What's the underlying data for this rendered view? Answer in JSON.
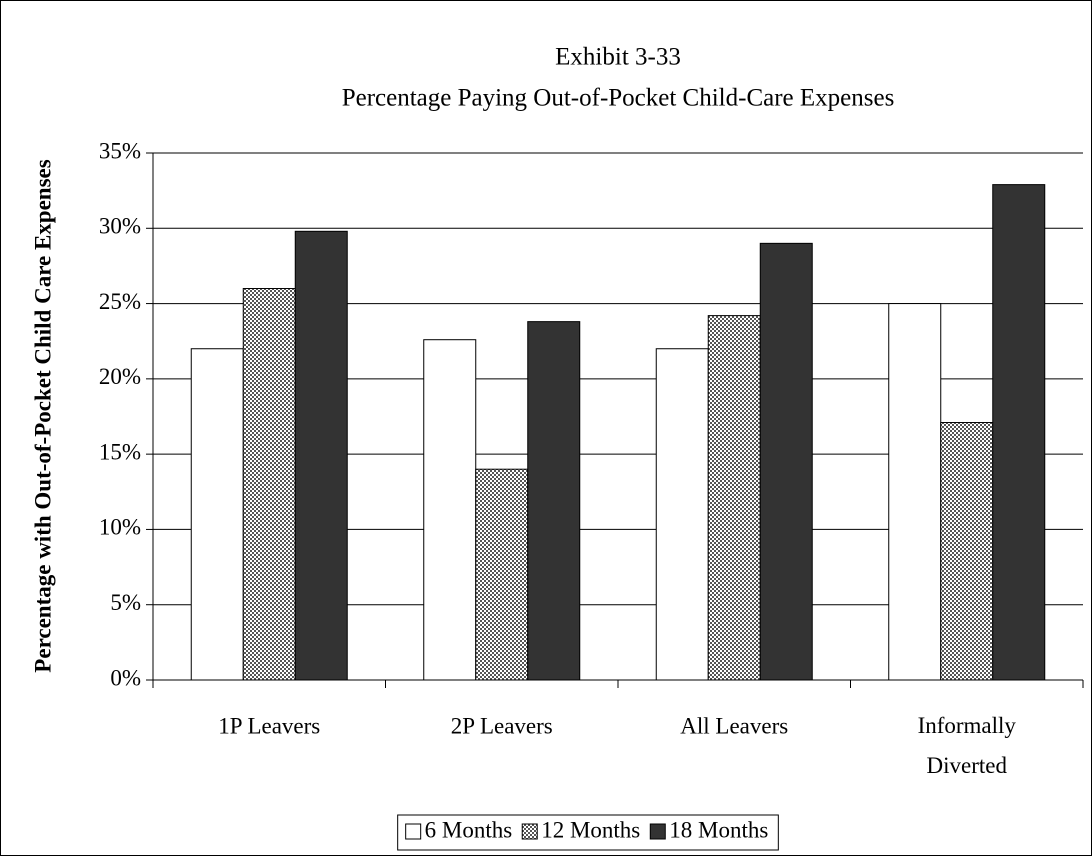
{
  "chart_data": {
    "type": "bar",
    "title": "Exhibit 3-33",
    "subtitle": "Percentage Paying Out-of-Pocket Child-Care Expenses",
    "y_label": "Percentage with Out-of-Pocket Child Care Expenses",
    "categories": [
      "1P Leavers",
      "2P Leavers",
      "All Leavers",
      "Informally Diverted"
    ],
    "series": [
      {
        "name": "6 Months",
        "color": "#ffffff",
        "values": [
          22.0,
          22.6,
          22.0,
          25.0
        ]
      },
      {
        "name": "12 Months",
        "color": "#8c8c8c",
        "pattern": "checker",
        "values": [
          26.0,
          14.0,
          24.2,
          17.1
        ]
      },
      {
        "name": "18 Months",
        "color": "#333333",
        "values": [
          29.8,
          23.8,
          29.0,
          32.9
        ]
      }
    ],
    "ylim": [
      0,
      35
    ],
    "yticks": [
      {
        "value": 0,
        "label": "0%"
      },
      {
        "value": 5,
        "label": "5%"
      },
      {
        "value": 10,
        "label": "10%"
      },
      {
        "value": 15,
        "label": "15%"
      },
      {
        "value": 20,
        "label": "20%"
      },
      {
        "value": 25,
        "label": "25%"
      },
      {
        "value": 30,
        "label": "30%"
      },
      {
        "value": 35,
        "label": "35%"
      }
    ],
    "grid": true,
    "legend": "bottom"
  }
}
